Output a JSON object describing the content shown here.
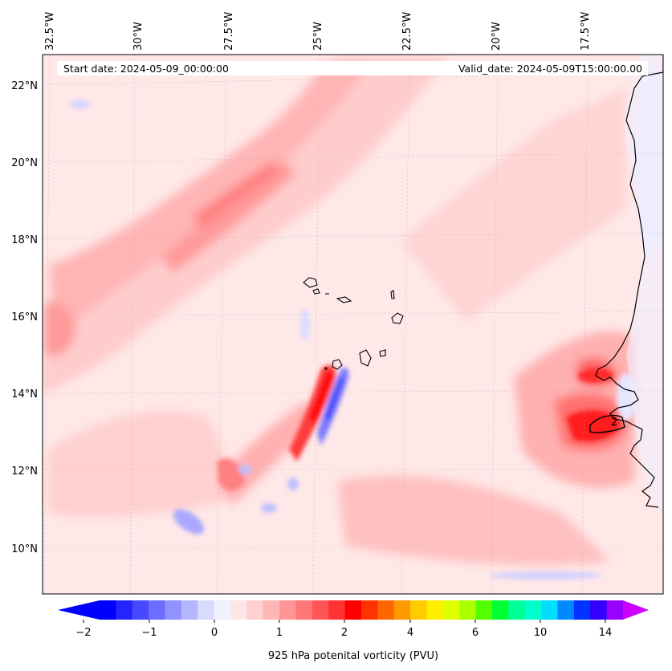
{
  "map": {
    "start_date_text": "Start date: 2024-05-09_00:00:00",
    "valid_date_text": "Valid_date: 2024-05-09T15:00:00.00",
    "lon_labels": [
      "32.5°W",
      "30°W",
      "27.5°W",
      "25°W",
      "22.5°W",
      "20°W",
      "17.5°W"
    ],
    "lat_labels": [
      "22°N",
      "20°N",
      "18°N",
      "16°N",
      "14°N",
      "12°N",
      "10°N"
    ],
    "contour_label": "2"
  },
  "colorbar": {
    "label": "925 hPa potenital vorticity (PVU)",
    "tick_labels": [
      "−2",
      "−1",
      "0",
      "1",
      "2",
      "4",
      "6",
      "10",
      "14"
    ],
    "colors": [
      "#0000ff",
      "#2424ff",
      "#4848ff",
      "#6d6dff",
      "#9191ff",
      "#b6b6ff",
      "#dadaff",
      "#f0f0ff",
      "#ffe6e6",
      "#ffd0d0",
      "#ffb6b6",
      "#ff9696",
      "#ff7777",
      "#ff5555",
      "#ff3333",
      "#ff0000",
      "#ff3300",
      "#ff6600",
      "#ff9900",
      "#ffcc00",
      "#ffee00",
      "#ddff00",
      "#aaff00",
      "#55ff00",
      "#00ff33",
      "#00ff99",
      "#00ffcc",
      "#00ddff",
      "#0088ff",
      "#0033ff",
      "#3300ff",
      "#9900ff"
    ],
    "extend_min_color": "#0000ff",
    "extend_max_color": "#cc00ff"
  }
}
